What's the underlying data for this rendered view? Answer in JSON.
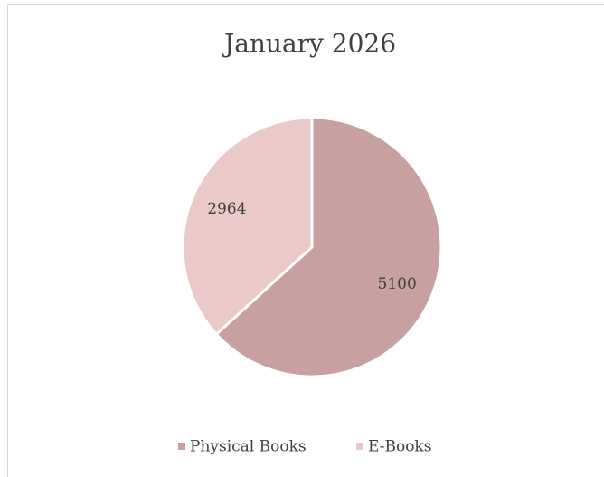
{
  "chart_data": {
    "type": "pie",
    "title": "January 2026",
    "categories": [
      "Physical Books",
      "E-Books"
    ],
    "values": [
      5100,
      2964
    ],
    "colors": [
      "#c9a0a0",
      "#ecc9c9"
    ],
    "legend": "bottom"
  }
}
